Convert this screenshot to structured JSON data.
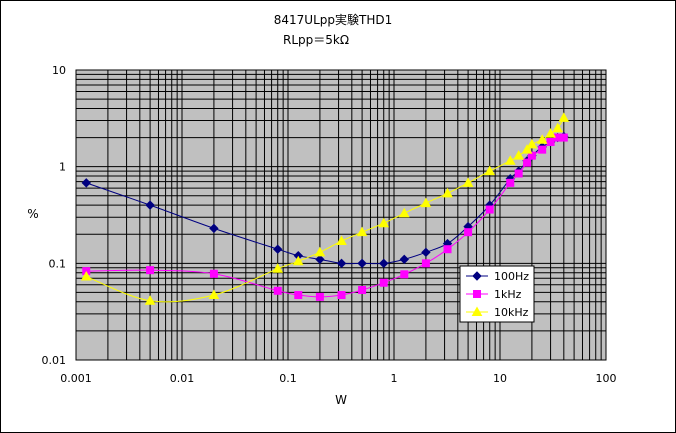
{
  "chart_data": {
    "type": "line",
    "title_line1": "8417ULpp実験THD1",
    "title_line2": "RLpp＝5kΩ",
    "xlabel": "W",
    "ylabel": "%",
    "x_scale": "log",
    "y_scale": "log",
    "xlim": [
      0.001,
      100
    ],
    "ylim": [
      0.01,
      10
    ],
    "x_ticks": [
      "0.001",
      "0.01",
      "0.1",
      "1",
      "10",
      "100"
    ],
    "y_ticks": [
      "0.01",
      "0.1",
      "1",
      "10"
    ],
    "grid": true,
    "plot_background": "#c0c0c0",
    "legend_position": "right, lower half",
    "series": [
      {
        "name": "100Hz",
        "color": "#000080",
        "marker": "diamond",
        "points": [
          [
            0.00125,
            0.68
          ],
          [
            0.005,
            0.4
          ],
          [
            0.02,
            0.23
          ],
          [
            0.08,
            0.14
          ],
          [
            0.125,
            0.12
          ],
          [
            0.2,
            0.11
          ],
          [
            0.32,
            0.1
          ],
          [
            0.5,
            0.1
          ],
          [
            0.8,
            0.1
          ],
          [
            1.25,
            0.11
          ],
          [
            2.0,
            0.13
          ],
          [
            3.2,
            0.16
          ],
          [
            5.0,
            0.24
          ],
          [
            8.0,
            0.4
          ],
          [
            12.5,
            0.75
          ],
          [
            15,
            0.9
          ],
          [
            18,
            1.15
          ],
          [
            20,
            1.3
          ],
          [
            25,
            1.6
          ],
          [
            30,
            1.8
          ],
          [
            35,
            2.0
          ],
          [
            40,
            2.05
          ]
        ]
      },
      {
        "name": "1kHz",
        "color": "#ff00ff",
        "marker": "square",
        "points": [
          [
            0.00125,
            0.083
          ],
          [
            0.005,
            0.085
          ],
          [
            0.02,
            0.078
          ],
          [
            0.08,
            0.052
          ],
          [
            0.125,
            0.047
          ],
          [
            0.2,
            0.045
          ],
          [
            0.32,
            0.047
          ],
          [
            0.5,
            0.053
          ],
          [
            0.8,
            0.063
          ],
          [
            1.25,
            0.077
          ],
          [
            2.0,
            0.1
          ],
          [
            3.2,
            0.14
          ],
          [
            5.0,
            0.21
          ],
          [
            8.0,
            0.36
          ],
          [
            12.5,
            0.68
          ],
          [
            15,
            0.85
          ],
          [
            18,
            1.1
          ],
          [
            20,
            1.3
          ],
          [
            25,
            1.5
          ],
          [
            30,
            1.8
          ],
          [
            35,
            2.0
          ],
          [
            40,
            2.0
          ]
        ]
      },
      {
        "name": "10kHz",
        "color": "#ffff00",
        "marker": "triangle",
        "points": [
          [
            0.00125,
            0.073
          ],
          [
            0.005,
            0.041
          ],
          [
            0.02,
            0.047
          ],
          [
            0.08,
            0.088
          ],
          [
            0.125,
            0.105
          ],
          [
            0.2,
            0.13
          ],
          [
            0.32,
            0.17
          ],
          [
            0.5,
            0.21
          ],
          [
            0.8,
            0.26
          ],
          [
            1.25,
            0.33
          ],
          [
            2.0,
            0.42
          ],
          [
            3.2,
            0.53
          ],
          [
            5.0,
            0.68
          ],
          [
            8.0,
            0.9
          ],
          [
            12.5,
            1.15
          ],
          [
            15,
            1.3
          ],
          [
            18,
            1.5
          ],
          [
            20,
            1.7
          ],
          [
            25,
            1.9
          ],
          [
            30,
            2.2
          ],
          [
            35,
            2.5
          ],
          [
            40,
            3.2
          ]
        ]
      }
    ]
  }
}
